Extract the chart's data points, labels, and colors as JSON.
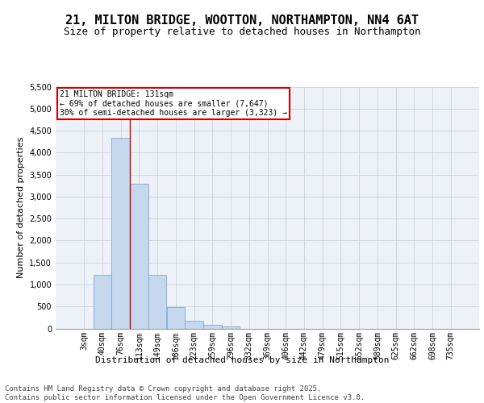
{
  "title": "21, MILTON BRIDGE, WOOTTON, NORTHAMPTON, NN4 6AT",
  "subtitle": "Size of property relative to detached houses in Northampton",
  "xlabel": "Distribution of detached houses by size in Northampton",
  "ylabel": "Number of detached properties",
  "categories": [
    "3sqm",
    "40sqm",
    "76sqm",
    "113sqm",
    "149sqm",
    "186sqm",
    "223sqm",
    "259sqm",
    "296sqm",
    "332sqm",
    "369sqm",
    "406sqm",
    "442sqm",
    "479sqm",
    "515sqm",
    "552sqm",
    "589sqm",
    "625sqm",
    "662sqm",
    "698sqm",
    "735sqm"
  ],
  "values": [
    0,
    1220,
    4330,
    3300,
    1220,
    480,
    170,
    90,
    50,
    0,
    0,
    0,
    0,
    0,
    0,
    0,
    0,
    0,
    0,
    0,
    0
  ],
  "bar_color": "#c5d8ee",
  "bar_edge_color": "#6a9fd0",
  "grid_color": "#c8d4e0",
  "background_color": "#eef2f8",
  "vline_color": "#cc0000",
  "annotation_text": "21 MILTON BRIDGE: 131sqm\n← 69% of detached houses are smaller (7,647)\n30% of semi-detached houses are larger (3,323) →",
  "annotation_box_color": "#ffffff",
  "annotation_box_edge_color": "#cc0000",
  "ylim": [
    0,
    5500
  ],
  "yticks": [
    0,
    500,
    1000,
    1500,
    2000,
    2500,
    3000,
    3500,
    4000,
    4500,
    5000,
    5500
  ],
  "footer_line1": "Contains HM Land Registry data © Crown copyright and database right 2025.",
  "footer_line2": "Contains public sector information licensed under the Open Government Licence v3.0.",
  "title_fontsize": 11,
  "subtitle_fontsize": 9,
  "axis_label_fontsize": 8,
  "tick_fontsize": 7,
  "annotation_fontsize": 7,
  "footer_fontsize": 6.5
}
